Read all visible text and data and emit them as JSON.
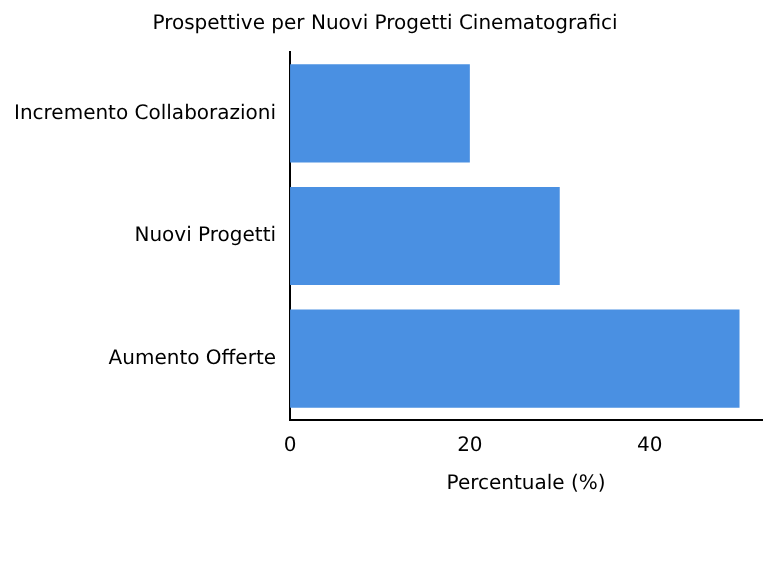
{
  "chart_data": {
    "type": "bar",
    "orientation": "horizontal",
    "title": "Prospettive per Nuovi Progetti Cinematografici",
    "xlabel": "Percentuale (%)",
    "categories": [
      "Incremento Collaborazioni",
      "Nuovi Progetti",
      "Aumento Offerte"
    ],
    "values": [
      20,
      30,
      50
    ],
    "color": "#4a90e2",
    "xlim": [
      0,
      52.5
    ],
    "xticks": [
      0,
      20,
      40
    ],
    "grid": false,
    "legend": false
  }
}
